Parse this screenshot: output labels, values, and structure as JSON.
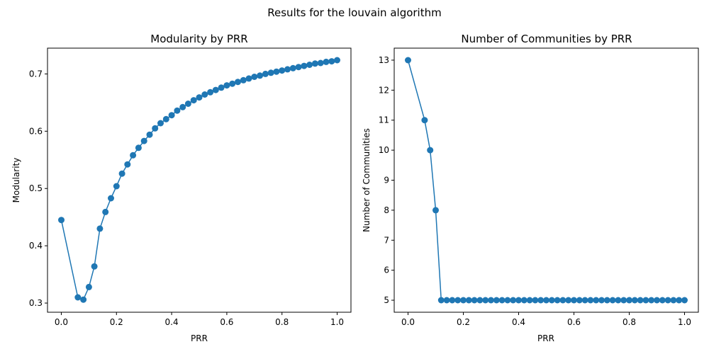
{
  "suptitle": "Results for the louvain algorithm",
  "chart_data": [
    {
      "type": "line",
      "title": "Modularity by PRR",
      "xlabel": "PRR",
      "ylabel": "Modularity",
      "xlim": [
        -0.05,
        1.05
      ],
      "ylim": [
        0.284,
        0.745
      ],
      "xticks": [
        0.0,
        0.2,
        0.4,
        0.6,
        0.8,
        1.0
      ],
      "xtick_labels": [
        "0.0",
        "0.2",
        "0.4",
        "0.6",
        "0.8",
        "1.0"
      ],
      "yticks": [
        0.3,
        0.4,
        0.5,
        0.6,
        0.7
      ],
      "ytick_labels": [
        "0.3",
        "0.4",
        "0.5",
        "0.6",
        "0.7"
      ],
      "color": "#1f77b4",
      "marker": "circle",
      "series": [
        {
          "x": [
            0.0,
            0.06,
            0.08,
            0.1,
            0.12,
            0.14,
            0.16,
            0.18,
            0.2,
            0.22,
            0.24,
            0.26,
            0.28,
            0.3,
            0.32,
            0.34,
            0.36,
            0.38,
            0.4,
            0.42,
            0.44,
            0.46,
            0.48,
            0.5,
            0.52,
            0.54,
            0.56,
            0.58,
            0.6,
            0.62,
            0.64,
            0.66,
            0.68,
            0.7,
            0.72,
            0.74,
            0.76,
            0.78,
            0.8,
            0.82,
            0.84,
            0.86,
            0.88,
            0.9,
            0.92,
            0.94,
            0.96,
            0.98,
            1.0
          ],
          "y": [
            0.445,
            0.31,
            0.306,
            0.328,
            0.364,
            0.43,
            0.459,
            0.483,
            0.504,
            0.526,
            0.542,
            0.558,
            0.571,
            0.583,
            0.594,
            0.605,
            0.614,
            0.621,
            0.628,
            0.636,
            0.642,
            0.648,
            0.654,
            0.659,
            0.664,
            0.668,
            0.672,
            0.676,
            0.68,
            0.683,
            0.686,
            0.689,
            0.692,
            0.695,
            0.697,
            0.7,
            0.702,
            0.704,
            0.706,
            0.708,
            0.71,
            0.712,
            0.714,
            0.716,
            0.718,
            0.719,
            0.721,
            0.722,
            0.724
          ]
        }
      ]
    },
    {
      "type": "line",
      "title": "Number of Communities by PRR",
      "xlabel": "PRR",
      "ylabel": "Number of Communities",
      "xlim": [
        -0.05,
        1.05
      ],
      "ylim": [
        4.6,
        13.4
      ],
      "xticks": [
        0.0,
        0.2,
        0.4,
        0.6,
        0.8,
        1.0
      ],
      "xtick_labels": [
        "0.0",
        "0.2",
        "0.4",
        "0.6",
        "0.8",
        "1.0"
      ],
      "yticks": [
        5,
        6,
        7,
        8,
        9,
        10,
        11,
        12,
        13
      ],
      "ytick_labels": [
        "5",
        "6",
        "7",
        "8",
        "9",
        "10",
        "11",
        "12",
        "13"
      ],
      "color": "#1f77b4",
      "marker": "circle",
      "series": [
        {
          "x": [
            0.0,
            0.06,
            0.08,
            0.1,
            0.12,
            0.14,
            0.16,
            0.18,
            0.2,
            0.22,
            0.24,
            0.26,
            0.28,
            0.3,
            0.32,
            0.34,
            0.36,
            0.38,
            0.4,
            0.42,
            0.44,
            0.46,
            0.48,
            0.5,
            0.52,
            0.54,
            0.56,
            0.58,
            0.6,
            0.62,
            0.64,
            0.66,
            0.68,
            0.7,
            0.72,
            0.74,
            0.76,
            0.78,
            0.8,
            0.82,
            0.84,
            0.86,
            0.88,
            0.9,
            0.92,
            0.94,
            0.96,
            0.98,
            1.0
          ],
          "y": [
            13,
            11,
            10,
            8,
            5,
            5,
            5,
            5,
            5,
            5,
            5,
            5,
            5,
            5,
            5,
            5,
            5,
            5,
            5,
            5,
            5,
            5,
            5,
            5,
            5,
            5,
            5,
            5,
            5,
            5,
            5,
            5,
            5,
            5,
            5,
            5,
            5,
            5,
            5,
            5,
            5,
            5,
            5,
            5,
            5,
            5,
            5,
            5,
            5
          ]
        }
      ]
    }
  ]
}
